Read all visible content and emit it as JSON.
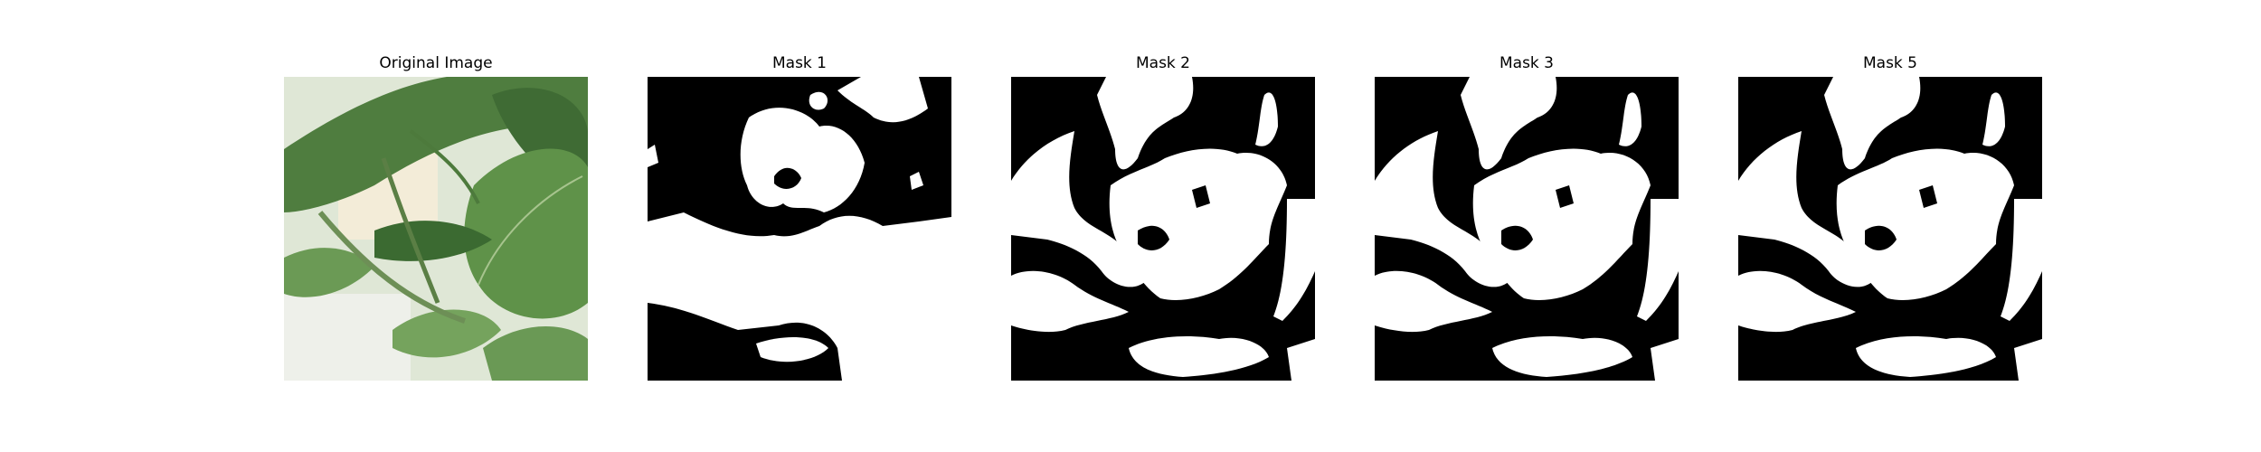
{
  "panels": [
    {
      "title": "Original Image",
      "icon": "leaf-photo"
    },
    {
      "title": "Mask 1",
      "icon": "binary-mask"
    },
    {
      "title": "Mask 2",
      "icon": "binary-mask"
    },
    {
      "title": "Mask 3",
      "icon": "binary-mask"
    },
    {
      "title": "Mask 5",
      "icon": "binary-mask"
    }
  ],
  "colors": {
    "mask_background": "#000000",
    "mask_foreground": "#ffffff",
    "leaf_dark": "#2f5a2c",
    "leaf_light": "#7fa86a",
    "photo_background": "#dfe7d6"
  }
}
